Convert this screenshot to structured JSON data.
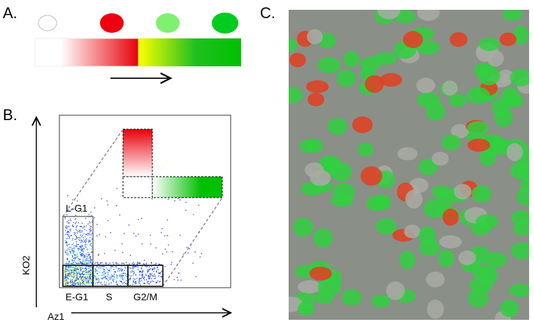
{
  "panel_a": {
    "label": "A."
  },
  "panel_b": {
    "label": "B.",
    "y_axis_label": "KO2",
    "x_axis_label": "Az1",
    "gates": [
      "L-G1",
      "E-G1",
      "S",
      "G2/M"
    ]
  },
  "panel_c": {
    "label": "C."
  }
}
